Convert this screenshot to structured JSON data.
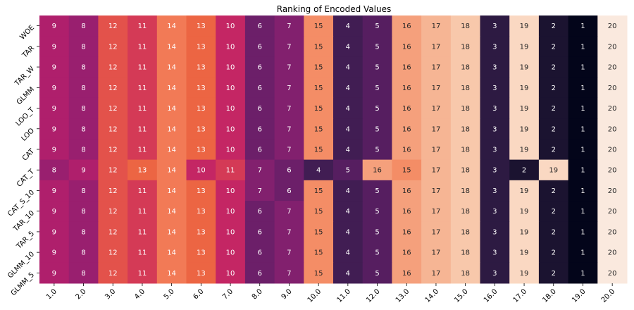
{
  "chart_data": {
    "type": "heatmap",
    "title": "Ranking of Encoded Values",
    "xlabel": "",
    "ylabel": "",
    "colormap": "rocket",
    "colorbar": false,
    "value_range": [
      1,
      20
    ],
    "x_categories": [
      "1.0",
      "2.0",
      "3.0",
      "4.0",
      "5.0",
      "6.0",
      "7.0",
      "8.0",
      "9.0",
      "10.0",
      "11.0",
      "12.0",
      "13.0",
      "14.0",
      "15.0",
      "16.0",
      "17.0",
      "18.0",
      "19.0",
      "20.0"
    ],
    "y_categories": [
      "WOE",
      "TAR",
      "TAR_W",
      "GLMM",
      "LOO_T",
      "LOO",
      "CAT",
      "CAT_T",
      "CAT_S_10",
      "TAR_10",
      "TAR_5",
      "GLMM_10",
      "GLMM_5"
    ],
    "values": [
      [
        9,
        8,
        12,
        11,
        14,
        13,
        10,
        6,
        7,
        15,
        4,
        5,
        16,
        17,
        18,
        3,
        19,
        2,
        1,
        20
      ],
      [
        9,
        8,
        12,
        11,
        14,
        13,
        10,
        6,
        7,
        15,
        4,
        5,
        16,
        17,
        18,
        3,
        19,
        2,
        1,
        20
      ],
      [
        9,
        8,
        12,
        11,
        14,
        13,
        10,
        6,
        7,
        15,
        4,
        5,
        16,
        17,
        18,
        3,
        19,
        2,
        1,
        20
      ],
      [
        9,
        8,
        12,
        11,
        14,
        13,
        10,
        6,
        7,
        15,
        4,
        5,
        16,
        17,
        18,
        3,
        19,
        2,
        1,
        20
      ],
      [
        9,
        8,
        12,
        11,
        14,
        13,
        10,
        6,
        7,
        15,
        4,
        5,
        16,
        17,
        18,
        3,
        19,
        2,
        1,
        20
      ],
      [
        9,
        8,
        12,
        11,
        14,
        13,
        10,
        6,
        7,
        15,
        4,
        5,
        16,
        17,
        18,
        3,
        19,
        2,
        1,
        20
      ],
      [
        9,
        8,
        12,
        11,
        14,
        13,
        10,
        6,
        7,
        15,
        4,
        5,
        16,
        17,
        18,
        3,
        19,
        2,
        1,
        20
      ],
      [
        8,
        9,
        12,
        13,
        14,
        10,
        11,
        7,
        6,
        4,
        5,
        16,
        15,
        17,
        18,
        3,
        2,
        19,
        1,
        20
      ],
      [
        9,
        8,
        12,
        11,
        14,
        13,
        10,
        7,
        6,
        15,
        4,
        5,
        16,
        17,
        18,
        3,
        19,
        2,
        1,
        20
      ],
      [
        9,
        8,
        12,
        11,
        14,
        13,
        10,
        6,
        7,
        15,
        4,
        5,
        16,
        17,
        18,
        3,
        19,
        2,
        1,
        20
      ],
      [
        9,
        8,
        12,
        11,
        14,
        13,
        10,
        6,
        7,
        15,
        4,
        5,
        16,
        17,
        18,
        3,
        19,
        2,
        1,
        20
      ],
      [
        9,
        8,
        12,
        11,
        14,
        13,
        10,
        6,
        7,
        15,
        4,
        5,
        16,
        17,
        18,
        3,
        19,
        2,
        1,
        20
      ],
      [
        9,
        8,
        12,
        11,
        14,
        13,
        10,
        6,
        7,
        15,
        4,
        5,
        16,
        17,
        18,
        3,
        19,
        2,
        1,
        20
      ]
    ],
    "palette": [
      "#03051a",
      "#1b1330",
      "#2d1a42",
      "#411d53",
      "#561e60",
      "#6c1f69",
      "#82206e",
      "#991f6f",
      "#af1f6c",
      "#c42664",
      "#d43a56",
      "#e3524b",
      "#ec6543",
      "#f27a56",
      "#f48d66",
      "#f5a07c",
      "#f6b594",
      "#f8c8ab",
      "#fad8c2",
      "#fae9de"
    ]
  }
}
